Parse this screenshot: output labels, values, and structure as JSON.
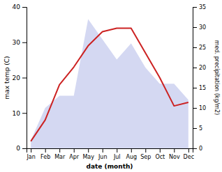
{
  "chart_data": {
    "type": "line",
    "categories": [
      "Jan",
      "Feb",
      "Mar",
      "Apr",
      "May",
      "Jun",
      "Jul",
      "Aug",
      "Sep",
      "Oct",
      "Nov",
      "Dec"
    ],
    "xlabel": "date (month)",
    "ylabel": "max temp (C)",
    "y2label": "med. precipitation (kg/m2)",
    "series": [
      {
        "type": "area",
        "axis": "y2",
        "color": "#b0b8e8",
        "values": [
          2,
          10,
          13,
          13,
          32,
          27,
          22,
          26,
          20,
          16,
          16,
          12
        ]
      },
      {
        "type": "line",
        "color": "#cc2222",
        "values": [
          2,
          8,
          18,
          23,
          29,
          33,
          34,
          34,
          27,
          20,
          12,
          13
        ]
      }
    ],
    "ylim": [
      0,
      40
    ],
    "yticks": [
      0,
      10,
      20,
      30,
      40
    ],
    "y2lim": [
      0,
      35
    ],
    "y2ticks": [
      0,
      5,
      10,
      15,
      20,
      25,
      30,
      35
    ]
  }
}
